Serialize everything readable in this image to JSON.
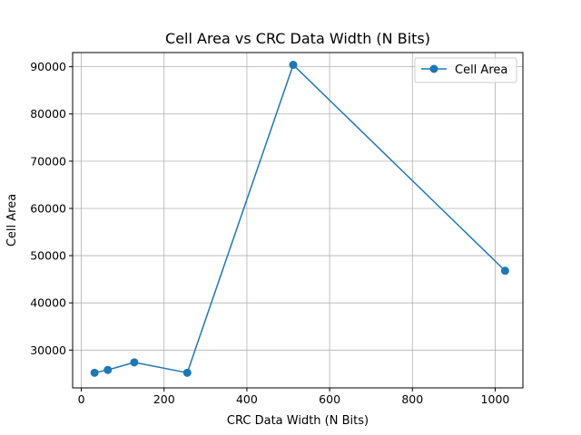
{
  "chart_data": {
    "type": "line",
    "title": "Cell Area vs CRC Data Width (N Bits)",
    "xlabel": "CRC Data Width (N Bits)",
    "ylabel": "Cell Area",
    "xlim": [
      -21,
      1067
    ],
    "ylim": [
      22000,
      93000
    ],
    "x_ticks": [
      0,
      200,
      400,
      600,
      800,
      1000
    ],
    "y_ticks": [
      30000,
      40000,
      50000,
      60000,
      70000,
      80000,
      90000
    ],
    "grid": true,
    "legend_position": "upper right",
    "series": [
      {
        "name": "Cell Area",
        "color": "#1f77b4",
        "marker": "circle",
        "x": [
          32,
          64,
          128,
          256,
          512,
          1024
        ],
        "y": [
          25200,
          25800,
          27400,
          25200,
          90400,
          46800
        ]
      }
    ]
  }
}
